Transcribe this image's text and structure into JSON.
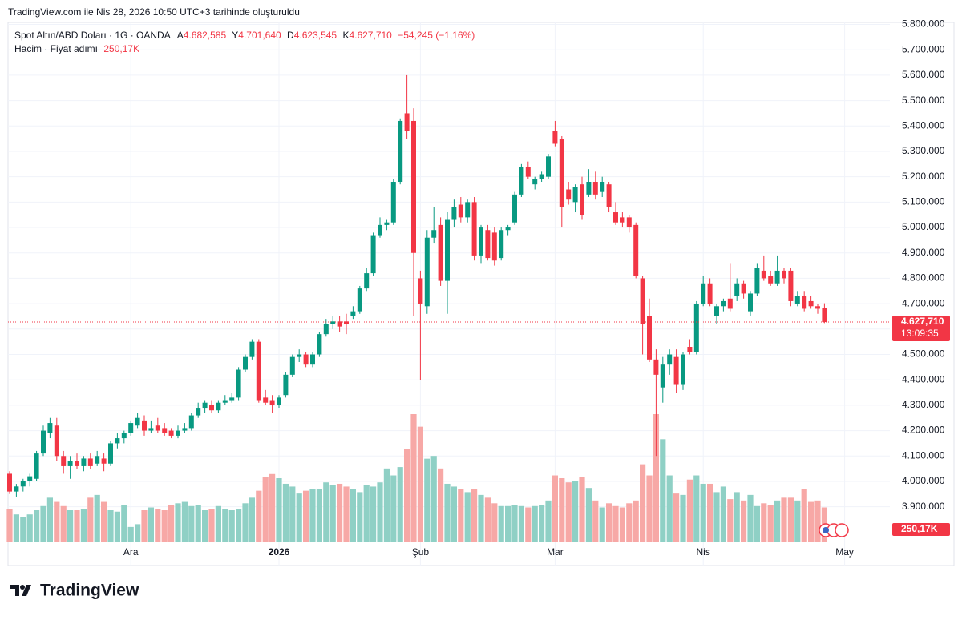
{
  "header": "TradingView.com ile Nis 28, 2026 10:50 UTC+3 tarihinde oluşturuldu",
  "chart_data": {
    "type": "candlestick",
    "title": "Spot Altın/ABD Doları · 1G · OANDA",
    "legend": {
      "open_key": "A",
      "open": "4.682,585",
      "high_key": "Y",
      "high": "4.701,640",
      "low_key": "D",
      "low": "4.623,545",
      "close_key": "K",
      "close": "4.627,710",
      "change": "−54,245 (−1,16%)"
    },
    "last_price_label": "4.627,710",
    "countdown": "13:09:35",
    "categories": [
      null,
      null,
      null,
      null,
      null,
      null,
      null,
      null,
      null,
      null,
      null,
      null,
      null,
      null,
      null,
      null,
      null,
      null,
      "Ara",
      null,
      null,
      null,
      null,
      null,
      null,
      null,
      null,
      null,
      null,
      null,
      null,
      null,
      null,
      null,
      null,
      null,
      null,
      null,
      null,
      null,
      "2026",
      null,
      null,
      null,
      null,
      null,
      null,
      null,
      null,
      null,
      null,
      null,
      null,
      null,
      null,
      null,
      null,
      null,
      null,
      null,
      null,
      "Şub",
      null,
      null,
      null,
      null,
      null,
      null,
      null,
      null,
      null,
      null,
      null,
      null,
      null,
      null,
      null,
      null,
      null,
      null,
      null,
      "Mar",
      null,
      null,
      null,
      null,
      null,
      null,
      null,
      null,
      null,
      null,
      null,
      null,
      null,
      null,
      null,
      null,
      null,
      null,
      null,
      null,
      null,
      "Nis",
      null,
      null,
      null,
      null,
      null,
      null,
      null,
      null,
      null,
      null,
      null,
      null,
      null,
      null,
      null,
      null,
      null,
      null,
      null,
      null,
      "May"
    ],
    "open": [
      4030,
      3960,
      3980,
      4000,
      4010,
      4110,
      4190,
      4220,
      4100,
      4060,
      4080,
      4060,
      4090,
      4070,
      4090,
      4070,
      4150,
      4170,
      4190,
      4220,
      4240,
      4200,
      4220,
      4210,
      4200,
      4180,
      4200,
      4210,
      4260,
      4290,
      4300,
      4280,
      4310,
      4320,
      4330,
      4440,
      4490,
      4550,
      4330,
      4320,
      4300,
      4340,
      4420,
      4490,
      4500,
      4460,
      4500,
      4580,
      4620,
      4630,
      4630,
      4650,
      4670,
      4760,
      4820,
      4970,
      5010,
      5020,
      5180,
      5450,
      5420,
      4800,
      4690,
      4960,
      5010,
      4790,
      5030,
      5090,
      5040,
      5100,
      4890,
      4990,
      4980,
      4880,
      4990,
      5020,
      5130,
      5240,
      5170,
      5190,
      5200,
      5380,
      5350,
      5150,
      5100,
      5170,
      5130,
      5180,
      5140,
      5170,
      5060,
      5040,
      5040,
      5010,
      4800,
      4650,
      4480,
      4370,
      4460,
      4490,
      4380,
      4530,
      4510,
      4700,
      4780,
      4650,
      4690,
      4720,
      4730,
      4780,
      4670,
      4740,
      4830,
      4810,
      4780,
      4830,
      4830,
      4700,
      4730,
      4710,
      4690,
      4682.585,
      null,
      null,
      null
    ],
    "high": [
      4040,
      3990,
      4010,
      4030,
      4120,
      4220,
      4250,
      4250,
      4120,
      4100,
      4110,
      4100,
      4110,
      4120,
      4110,
      4160,
      4190,
      4200,
      4240,
      4270,
      4260,
      4240,
      4250,
      4230,
      4210,
      4220,
      4230,
      4270,
      4310,
      4320,
      4320,
      4320,
      4340,
      4350,
      4450,
      4500,
      4560,
      4560,
      4360,
      4340,
      4340,
      4430,
      4500,
      4520,
      4510,
      4510,
      4590,
      4640,
      4650,
      4650,
      4660,
      4690,
      4770,
      4840,
      4980,
      5040,
      5030,
      5190,
      5430,
      5600,
      5470,
      4830,
      4990,
      5080,
      5040,
      5060,
      5110,
      5120,
      5110,
      5120,
      5010,
      5010,
      5000,
      5000,
      5010,
      5140,
      5250,
      5260,
      5200,
      5220,
      5290,
      5420,
      5360,
      5180,
      5170,
      5200,
      5230,
      5220,
      5200,
      5180,
      5100,
      5060,
      5050,
      5020,
      4810,
      4720,
      4520,
      4490,
      4520,
      4520,
      4510,
      4560,
      4710,
      4810,
      4800,
      4700,
      4720,
      4860,
      4800,
      4790,
      4750,
      4860,
      4890,
      4830,
      4890,
      4840,
      4840,
      4750,
      4750,
      4730,
      4700,
      4701.64,
      null,
      null,
      null
    ],
    "low": [
      3950,
      3940,
      3960,
      3980,
      4000,
      4100,
      4170,
      4080,
      4030,
      4010,
      4050,
      4040,
      4050,
      4060,
      4040,
      4060,
      4130,
      4150,
      4180,
      4210,
      4180,
      4190,
      4190,
      4180,
      4170,
      4170,
      4190,
      4200,
      4250,
      4270,
      4270,
      4270,
      4300,
      4310,
      4320,
      4430,
      4480,
      4310,
      4300,
      4270,
      4290,
      4330,
      4410,
      4470,
      4450,
      4450,
      4490,
      4570,
      4600,
      4590,
      4580,
      4640,
      4660,
      4750,
      4810,
      4960,
      4990,
      5010,
      5170,
      5350,
      4650,
      4400,
      4660,
      4940,
      4770,
      4660,
      5000,
      5020,
      5020,
      4870,
      4860,
      4870,
      4850,
      4870,
      4970,
      5010,
      5120,
      5190,
      5150,
      5180,
      5190,
      5320,
      5000,
      5090,
      5060,
      5030,
      5120,
      5110,
      5120,
      5060,
      5010,
      5000,
      4980,
      4800,
      4500,
      4470,
      4100,
      4310,
      4420,
      4350,
      4360,
      4500,
      4500,
      4690,
      4690,
      4620,
      4670,
      4670,
      4710,
      4720,
      4650,
      4730,
      4790,
      4770,
      4770,
      4780,
      4690,
      4690,
      4670,
      4680,
      4660,
      4623.545,
      null,
      null,
      null
    ],
    "close": [
      3960,
      3980,
      4000,
      4020,
      4110,
      4200,
      4230,
      4100,
      4060,
      4080,
      4060,
      4090,
      4060,
      4100,
      4070,
      4150,
      4170,
      4190,
      4230,
      4250,
      4200,
      4210,
      4200,
      4190,
      4180,
      4200,
      4210,
      4260,
      4290,
      4310,
      4280,
      4310,
      4320,
      4330,
      4440,
      4490,
      4550,
      4320,
      4310,
      4300,
      4330,
      4420,
      4490,
      4500,
      4460,
      4500,
      4580,
      4620,
      4630,
      4610,
      4620,
      4670,
      4760,
      4820,
      4970,
      5010,
      5020,
      5180,
      5420,
      5380,
      4900,
      4700,
      4960,
      4990,
      4790,
      5030,
      5080,
      5040,
      5100,
      4890,
      5000,
      4880,
      4870,
      4990,
      5000,
      5130,
      5240,
      5200,
      5190,
      5210,
      5280,
      5330,
      5080,
      5110,
      5160,
      5050,
      5180,
      5130,
      5180,
      5080,
      5020,
      5020,
      5000,
      4810,
      4620,
      4480,
      4420,
      4460,
      4500,
      4380,
      4500,
      4510,
      4700,
      4780,
      4700,
      4690,
      4710,
      4680,
      4780,
      4740,
      4740,
      4840,
      4800,
      4780,
      4830,
      4800,
      4710,
      4730,
      4680,
      4690,
      4680,
      4627.71,
      null,
      null,
      null
    ],
    "colors": {
      "up": "#089981",
      "down": "#f23645",
      "volume_up": "#8fd0c5",
      "volume_down": "#f7a8a6"
    },
    "volume": {
      "name": "Hacim · Fiyat adımı",
      "last_label": "250,17K",
      "values": [
        240,
        200,
        180,
        200,
        230,
        260,
        320,
        290,
        260,
        230,
        230,
        240,
        320,
        340,
        290,
        230,
        220,
        270,
        110,
        130,
        230,
        250,
        240,
        230,
        270,
        280,
        290,
        260,
        270,
        230,
        240,
        260,
        240,
        230,
        240,
        280,
        320,
        370,
        470,
        490,
        460,
        420,
        400,
        350,
        370,
        380,
        380,
        430,
        410,
        420,
        400,
        380,
        360,
        410,
        400,
        430,
        530,
        480,
        540,
        670,
        920,
        830,
        600,
        620,
        530,
        420,
        400,
        380,
        360,
        380,
        340,
        320,
        280,
        260,
        260,
        270,
        260,
        250,
        260,
        270,
        300,
        480,
        460,
        430,
        440,
        470,
        390,
        300,
        250,
        280,
        260,
        250,
        280,
        300,
        560,
        480,
        920,
        740,
        480,
        350,
        340,
        450,
        480,
        420,
        420,
        360,
        400,
        310,
        360,
        300,
        340,
        260,
        280,
        270,
        300,
        320,
        320,
        300,
        380,
        290,
        300,
        250.17,
        null,
        null,
        null
      ]
    },
    "ylim": [
      3760,
      5808
    ],
    "yticks": [
      {
        "value": 3900,
        "label": "3.900.000"
      },
      {
        "value": 4000,
        "label": "4.000.000"
      },
      {
        "value": 4100,
        "label": "4.100.000"
      },
      {
        "value": 4200,
        "label": "4.200.000"
      },
      {
        "value": 4300,
        "label": "4.300.000"
      },
      {
        "value": 4400,
        "label": "4.400.000"
      },
      {
        "value": 4500,
        "label": "4.500.000"
      },
      {
        "value": 4600,
        "label": "4.600.000"
      },
      {
        "value": 4700,
        "label": "4.700.000"
      },
      {
        "value": 4800,
        "label": "4.800.000"
      },
      {
        "value": 4900,
        "label": "4.900.000"
      },
      {
        "value": 5000,
        "label": "5.000.000"
      },
      {
        "value": 5100,
        "label": "5.100.000"
      },
      {
        "value": 5200,
        "label": "5.200.000"
      },
      {
        "value": 5300,
        "label": "5.300.000"
      },
      {
        "value": 5400,
        "label": "5.400.000"
      },
      {
        "value": 5500,
        "label": "5.500.000"
      },
      {
        "value": 5600,
        "label": "5.600.000"
      },
      {
        "value": 5700,
        "label": "5.700.000"
      },
      {
        "value": 5800,
        "label": "5.800.000"
      }
    ],
    "grid": true
  },
  "footer": {
    "logo": "TradingView"
  }
}
